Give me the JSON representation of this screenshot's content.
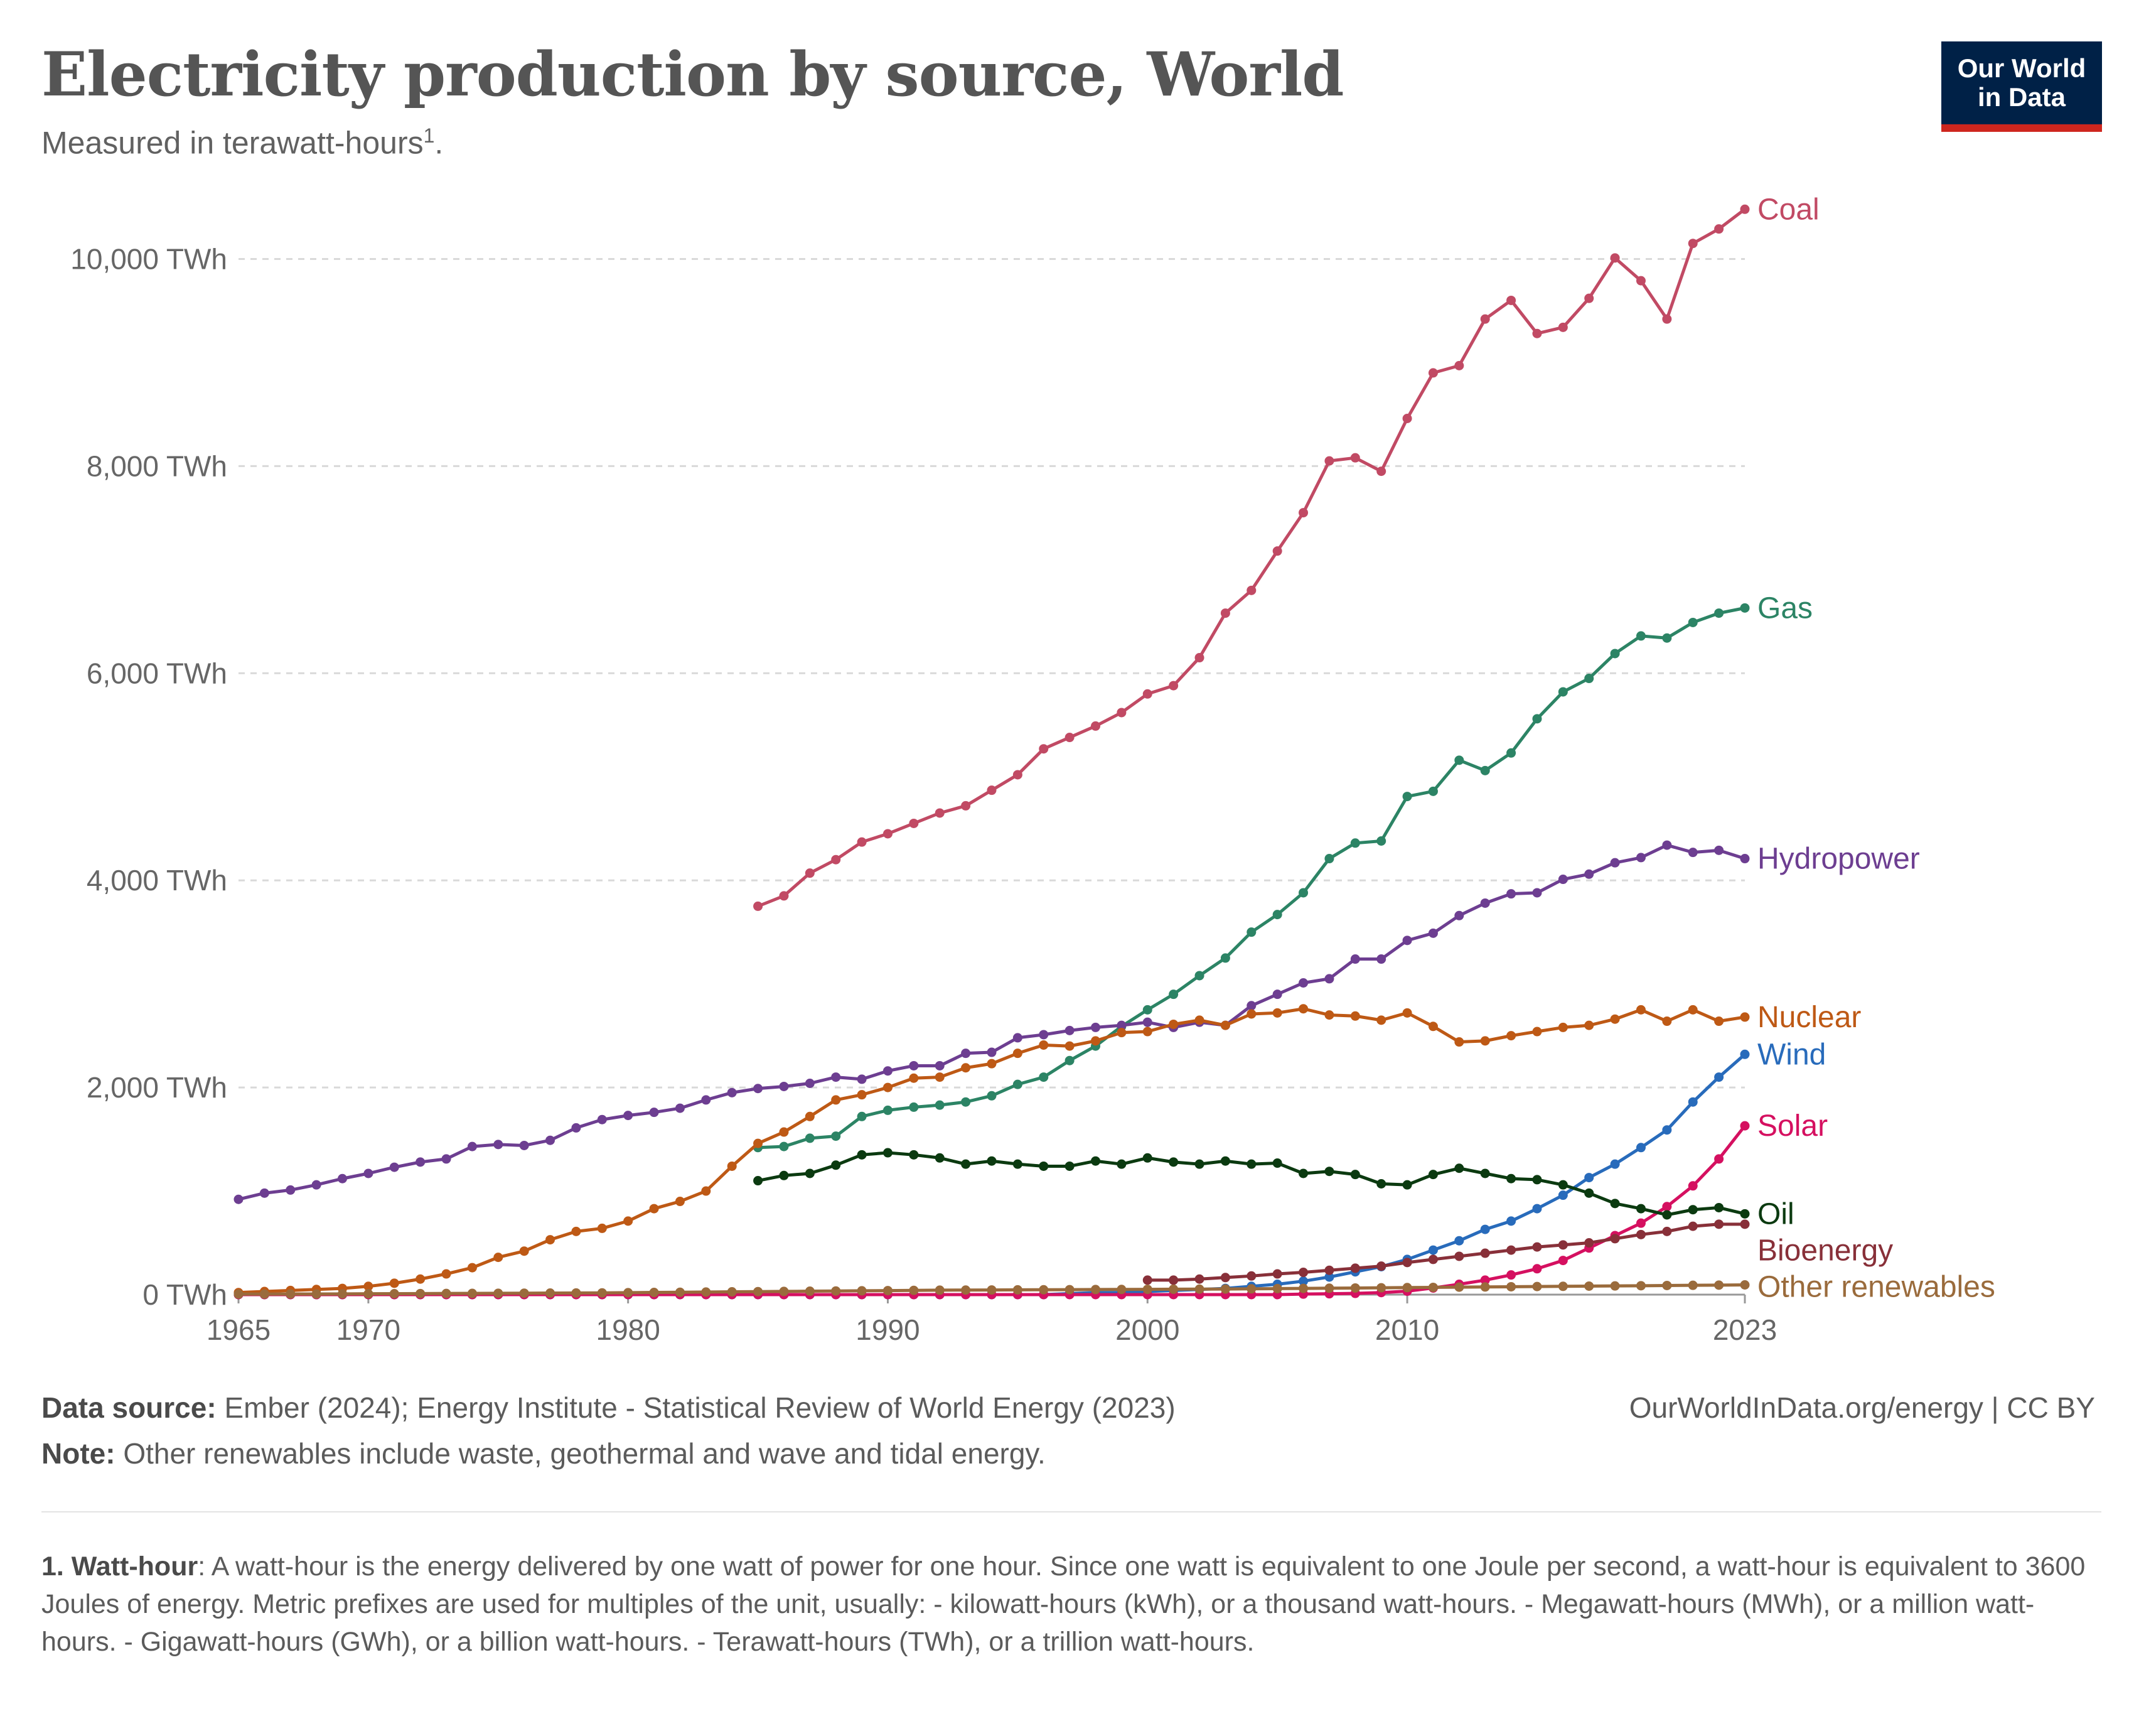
{
  "title": "Electricity production by source, World",
  "subtitle_text": "Measured in terawatt-hours",
  "subtitle_sup": "1",
  "subtitle_end": ".",
  "logo": {
    "line1": "Our World",
    "line2": "in Data"
  },
  "footer": {
    "source_label": "Data source:",
    "source_text": "Ember (2024); Energy Institute - Statistical Review of World Energy (2023)",
    "note_label": "Note:",
    "note_text": "Other renewables include waste, geothermal and wave and tidal energy.",
    "right_text": "OurWorldInData.org/energy | CC BY"
  },
  "footnote": {
    "term": "1. Watt-hour",
    "text": ": A watt-hour is the energy delivered by one watt of power for one hour. Since one watt is equivalent to one Joule per second, a watt-hour is equivalent to 3600 Joules of energy. Metric prefixes are used for multiples of the unit, usually: - kilowatt-hours (kWh), or a thousand watt-hours. - Megawatt-hours (MWh), or a million watt-hours. - Gigawatt-hours (GWh), or a billion watt-hours. - Terawatt-hours (TWh), or a trillion watt-hours."
  },
  "chart_data": {
    "type": "line",
    "xlim": [
      1965,
      2023
    ],
    "ylim": [
      0,
      10500
    ],
    "grid": true,
    "y_ticks": [
      0,
      2000,
      4000,
      6000,
      8000,
      10000
    ],
    "y_tick_labels": [
      "0 TWh",
      "2,000 TWh",
      "4,000 TWh",
      "6,000 TWh",
      "8,000 TWh",
      "10,000 TWh"
    ],
    "x_ticks": [
      1965,
      1970,
      1980,
      1990,
      2000,
      2010,
      2023
    ],
    "x_tick_labels": [
      "1965",
      "1970",
      "1980",
      "1990",
      "2000",
      "2010",
      "2023"
    ],
    "legend": "inline-right",
    "series": [
      {
        "name": "Coal",
        "color": "#c14a64",
        "start": 1985,
        "values": [
          3750,
          3850,
          4070,
          4200,
          4370,
          4450,
          4550,
          4650,
          4720,
          4870,
          5020,
          5270,
          5380,
          5490,
          5620,
          5800,
          5880,
          6150,
          6580,
          6800,
          7180,
          7550,
          8050,
          8080,
          7950,
          8460,
          8900,
          8970,
          9420,
          9600,
          9280,
          9340,
          9620,
          10010,
          9790,
          9420,
          10150,
          10290,
          10480
        ]
      },
      {
        "name": "Gas",
        "color": "#2c8465",
        "start": 1985,
        "values": [
          1420,
          1430,
          1510,
          1530,
          1720,
          1780,
          1810,
          1830,
          1860,
          1920,
          2030,
          2100,
          2260,
          2400,
          2590,
          2750,
          2900,
          3080,
          3250,
          3500,
          3670,
          3880,
          4210,
          4360,
          4380,
          4810,
          4860,
          5160,
          5060,
          5230,
          5560,
          5820,
          5950,
          6190,
          6360,
          6340,
          6490,
          6580,
          6630
        ]
      },
      {
        "name": "Hydropower",
        "color": "#6d3e91",
        "start": 1965,
        "values": [
          920,
          980,
          1010,
          1060,
          1120,
          1170,
          1230,
          1280,
          1310,
          1430,
          1450,
          1440,
          1490,
          1610,
          1690,
          1730,
          1760,
          1800,
          1880,
          1950,
          1990,
          2010,
          2040,
          2100,
          2080,
          2160,
          2210,
          2210,
          2330,
          2340,
          2480,
          2510,
          2550,
          2580,
          2600,
          2630,
          2580,
          2630,
          2600,
          2790,
          2900,
          3010,
          3050,
          3240,
          3240,
          3420,
          3490,
          3660,
          3780,
          3870,
          3880,
          4010,
          4060,
          4170,
          4220,
          4340,
          4270,
          4290,
          4210
        ]
      },
      {
        "name": "Nuclear",
        "color": "#be5915",
        "start": 1965,
        "values": [
          20,
          30,
          40,
          50,
          60,
          80,
          110,
          150,
          200,
          260,
          360,
          420,
          530,
          610,
          640,
          710,
          830,
          900,
          1000,
          1240,
          1460,
          1570,
          1720,
          1880,
          1930,
          2000,
          2090,
          2100,
          2190,
          2230,
          2330,
          2410,
          2400,
          2450,
          2530,
          2540,
          2610,
          2650,
          2600,
          2710,
          2720,
          2760,
          2700,
          2690,
          2650,
          2720,
          2590,
          2440,
          2450,
          2500,
          2540,
          2580,
          2600,
          2660,
          2750,
          2640,
          2750,
          2640,
          2680
        ]
      },
      {
        "name": "Wind",
        "color": "#286bbb",
        "start": 1965,
        "values": [
          0,
          0,
          0,
          0,
          0,
          0,
          0,
          0,
          0,
          0,
          0,
          0,
          0,
          0,
          0,
          0,
          0,
          0,
          0,
          0,
          0,
          0,
          0,
          0,
          0,
          0,
          0,
          0,
          0,
          0,
          0,
          0,
          10,
          20,
          20,
          30,
          40,
          50,
          60,
          80,
          100,
          130,
          170,
          220,
          270,
          340,
          430,
          520,
          630,
          710,
          830,
          960,
          1130,
          1260,
          1420,
          1590,
          1860,
          2100,
          2320
        ]
      },
      {
        "name": "Solar",
        "color": "#d51060",
        "start": 1965,
        "values": [
          0,
          0,
          0,
          0,
          0,
          0,
          0,
          0,
          0,
          0,
          0,
          0,
          0,
          0,
          0,
          0,
          0,
          0,
          0,
          0,
          0,
          0,
          0,
          0,
          0,
          0,
          0,
          0,
          0,
          0,
          0,
          0,
          0,
          0,
          0,
          0,
          0,
          0,
          0,
          0,
          0,
          5,
          8,
          12,
          20,
          33,
          64,
          100,
          140,
          190,
          250,
          330,
          450,
          570,
          690,
          850,
          1050,
          1310,
          1630
        ]
      },
      {
        "name": "Oil",
        "color": "#0b3a10",
        "start": 1985,
        "values": [
          1100,
          1150,
          1170,
          1250,
          1350,
          1370,
          1350,
          1320,
          1260,
          1290,
          1260,
          1240,
          1240,
          1290,
          1260,
          1320,
          1280,
          1260,
          1290,
          1260,
          1270,
          1170,
          1190,
          1160,
          1070,
          1060,
          1160,
          1220,
          1170,
          1120,
          1110,
          1060,
          980,
          880,
          830,
          770,
          820,
          840,
          780
        ]
      },
      {
        "name": "Bioenergy",
        "color": "#883039",
        "start": 2000,
        "values": [
          140,
          140,
          150,
          165,
          180,
          200,
          215,
          235,
          255,
          275,
          310,
          340,
          370,
          400,
          430,
          460,
          480,
          500,
          540,
          580,
          610,
          660,
          680,
          680
        ]
      },
      {
        "name": "Other renewables",
        "color": "#9a6b3c",
        "start": 1965,
        "values": [
          5,
          5,
          6,
          6,
          7,
          8,
          9,
          10,
          11,
          12,
          13,
          14,
          15,
          16,
          17,
          19,
          21,
          23,
          25,
          27,
          29,
          31,
          33,
          35,
          37,
          39,
          41,
          43,
          44,
          45,
          46,
          47,
          48,
          49,
          50,
          51,
          52,
          53,
          54,
          56,
          58,
          60,
          62,
          64,
          66,
          68,
          70,
          72,
          74,
          76,
          78,
          80,
          82,
          84,
          86,
          88,
          90,
          92,
          94
        ]
      }
    ]
  }
}
